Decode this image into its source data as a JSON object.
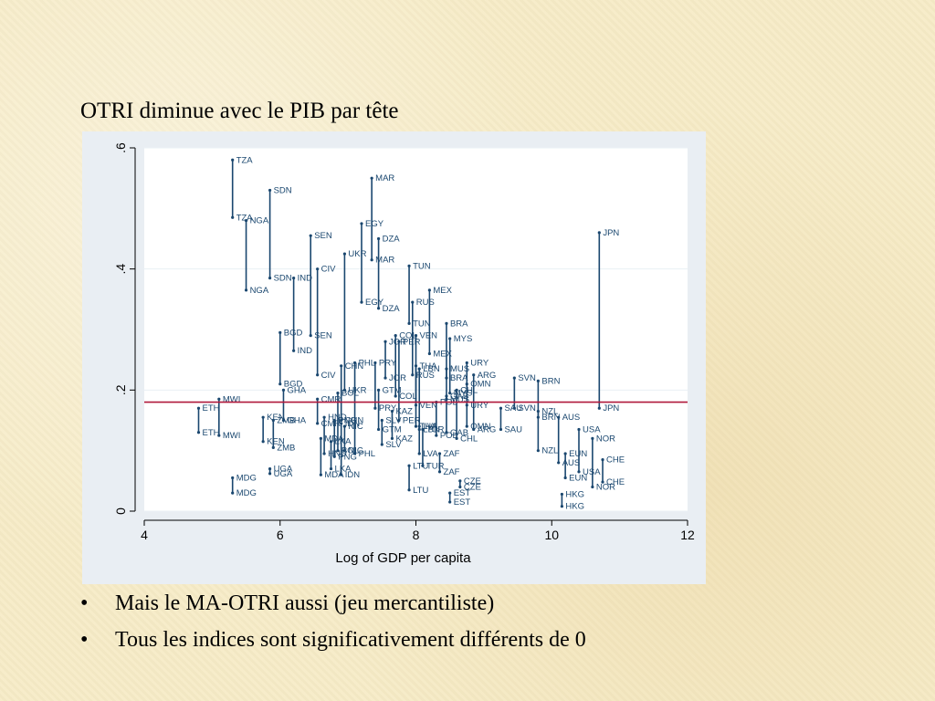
{
  "slide": {
    "title": "OTRI diminue avec le PIB par tête",
    "bullets": [
      {
        "marker": "•",
        "text": "Mais le MA-OTRI aussi (jeu mercantiliste)"
      },
      {
        "marker": "•",
        "text": "Tous les indices sont significativement différents de 0"
      }
    ]
  },
  "colors": {
    "series": "#1a476f",
    "reference_line": "#b0183a",
    "plot_bg": "#ffffff",
    "outer_bg": "#e9eef3",
    "grid": "#eaf0f4"
  },
  "chart_data": {
    "type": "scatter",
    "title": "",
    "xlabel": "Log of GDP per capita",
    "ylabel": "",
    "xlim": [
      4,
      12
    ],
    "ylim": [
      0,
      0.6
    ],
    "xticks": [
      4,
      6,
      8,
      10,
      12
    ],
    "xtick_labels": [
      "4",
      "6",
      "8",
      "10",
      "12"
    ],
    "yticks": [
      0,
      0.2,
      0.4,
      0.6
    ],
    "ytick_labels": [
      "0",
      ".2",
      ".4",
      ".6"
    ],
    "grid": true,
    "reference_line_y": 0.18,
    "pairs": [
      {
        "code": "TZA",
        "x": 5.3,
        "y1": 0.58,
        "y2": 0.485
      },
      {
        "code": "SDN",
        "x": 5.85,
        "y1": 0.53,
        "y2": 0.385
      },
      {
        "code": "NGA",
        "x": 5.5,
        "y1": 0.48,
        "y2": 0.365
      },
      {
        "code": "MAR",
        "x": 7.35,
        "y1": 0.55,
        "y2": 0.415
      },
      {
        "code": "EGY",
        "x": 7.2,
        "y1": 0.475,
        "y2": 0.345
      },
      {
        "code": "DZA",
        "x": 7.45,
        "y1": 0.45,
        "y2": 0.335
      },
      {
        "code": "SEN",
        "x": 6.45,
        "y1": 0.455,
        "y2": 0.29
      },
      {
        "code": "UKR",
        "x": 6.95,
        "y1": 0.425,
        "y2": 0.2
      },
      {
        "code": "CIV",
        "x": 6.55,
        "y1": 0.4,
        "y2": 0.225
      },
      {
        "code": "IND",
        "x": 6.2,
        "y1": 0.385,
        "y2": 0.265
      },
      {
        "code": "TUN",
        "x": 7.9,
        "y1": 0.405,
        "y2": 0.31
      },
      {
        "code": "MEX",
        "x": 8.2,
        "y1": 0.365,
        "y2": 0.26
      },
      {
        "code": "RUS",
        "x": 7.95,
        "y1": 0.345,
        "y2": 0.225
      },
      {
        "code": "JPN",
        "x": 10.7,
        "y1": 0.46,
        "y2": 0.17
      },
      {
        "code": "BGD",
        "x": 6.0,
        "y1": 0.295,
        "y2": 0.21
      },
      {
        "code": "BRA",
        "x": 8.45,
        "y1": 0.31,
        "y2": 0.22
      },
      {
        "code": "MYS",
        "x": 8.5,
        "y1": 0.285,
        "y2": 0.195
      },
      {
        "code": "URY",
        "x": 8.75,
        "y1": 0.245,
        "y2": 0.175
      },
      {
        "code": "ARG",
        "x": 8.85,
        "y1": 0.225,
        "y2": 0.135
      },
      {
        "code": "SVN",
        "x": 9.45,
        "y1": 0.22,
        "y2": 0.17
      },
      {
        "code": "BRN",
        "x": 9.8,
        "y1": 0.215,
        "y2": 0.155
      },
      {
        "code": "ETH",
        "x": 4.8,
        "y1": 0.17,
        "y2": 0.13
      },
      {
        "code": "MWI",
        "x": 5.1,
        "y1": 0.185,
        "y2": 0.125
      },
      {
        "code": "MDG",
        "x": 5.3,
        "y1": 0.055,
        "y2": 0.03
      },
      {
        "code": "UGA",
        "x": 5.85,
        "y1": 0.07,
        "y2": 0.062
      },
      {
        "code": "NZL",
        "x": 9.8,
        "y1": 0.165,
        "y2": 0.1
      },
      {
        "code": "AUS",
        "x": 10.1,
        "y1": 0.155,
        "y2": 0.08
      },
      {
        "code": "USA",
        "x": 10.4,
        "y1": 0.135,
        "y2": 0.065
      },
      {
        "code": "NOR",
        "x": 10.6,
        "y1": 0.12,
        "y2": 0.04
      },
      {
        "code": "EUN",
        "x": 10.2,
        "y1": 0.095,
        "y2": 0.055
      },
      {
        "code": "CHE",
        "x": 10.75,
        "y1": 0.085,
        "y2": 0.048
      },
      {
        "code": "HKG",
        "x": 10.15,
        "y1": 0.028,
        "y2": 0.008
      },
      {
        "code": "LTU",
        "x": 7.9,
        "y1": 0.075,
        "y2": 0.035
      },
      {
        "code": "EST",
        "x": 8.5,
        "y1": 0.03,
        "y2": 0.015
      },
      {
        "code": "CZE",
        "x": 8.65,
        "y1": 0.05,
        "y2": 0.04
      },
      {
        "code": "ZAF",
        "x": 8.35,
        "y1": 0.095,
        "y2": 0.065
      },
      {
        "code": "TUR",
        "x": 8.1,
        "y1": 0.135,
        "y2": 0.075
      },
      {
        "code": "LVA",
        "x": 8.05,
        "y1": 0.14,
        "y2": 0.095
      },
      {
        "code": "SLV",
        "x": 7.5,
        "y1": 0.15,
        "y2": 0.11
      },
      {
        "code": "KAZ",
        "x": 7.65,
        "y1": 0.165,
        "y2": 0.12
      },
      {
        "code": "ZMB",
        "x": 5.9,
        "y1": 0.15,
        "y2": 0.105
      },
      {
        "code": "KEN",
        "x": 5.75,
        "y1": 0.155,
        "y2": 0.115
      },
      {
        "code": "GHA",
        "x": 6.05,
        "y1": 0.2,
        "y2": 0.15
      },
      {
        "code": "CMR",
        "x": 6.55,
        "y1": 0.185,
        "y2": 0.145
      },
      {
        "code": "BOL",
        "x": 6.85,
        "y1": 0.195,
        "y2": 0.1
      },
      {
        "code": "CHN",
        "x": 6.9,
        "y1": 0.24,
        "y2": 0.15
      },
      {
        "code": "PHL",
        "x": 7.1,
        "y1": 0.245,
        "y2": 0.095
      },
      {
        "code": "PRY",
        "x": 7.4,
        "y1": 0.245,
        "y2": 0.17
      },
      {
        "code": "JOR",
        "x": 7.55,
        "y1": 0.28,
        "y2": 0.22
      },
      {
        "code": "PER",
        "x": 7.75,
        "y1": 0.28,
        "y2": 0.15
      },
      {
        "code": "COL",
        "x": 7.7,
        "y1": 0.29,
        "y2": 0.19
      },
      {
        "code": "VEN",
        "x": 8.0,
        "y1": 0.29,
        "y2": 0.175
      },
      {
        "code": "THA",
        "x": 8.0,
        "y1": 0.24,
        "y2": 0.14
      },
      {
        "code": "LBN",
        "x": 8.05,
        "y1": 0.235,
        "y2": 0.135
      },
      {
        "code": "MUS",
        "x": 8.45,
        "y1": 0.235,
        "y2": 0.185
      },
      {
        "code": "OMN",
        "x": 8.75,
        "y1": 0.21,
        "y2": 0.14
      },
      {
        "code": "CHL",
        "x": 8.6,
        "y1": 0.2,
        "y2": 0.12
      },
      {
        "code": "GAB",
        "x": 8.45,
        "y1": 0.19,
        "y2": 0.13
      },
      {
        "code": "POL",
        "x": 8.3,
        "y1": 0.18,
        "y2": 0.125
      },
      {
        "code": "SAU",
        "x": 9.25,
        "y1": 0.17,
        "y2": 0.135
      },
      {
        "code": "GTM",
        "x": 7.45,
        "y1": 0.2,
        "y2": 0.135
      },
      {
        "code": "HND",
        "x": 6.65,
        "y1": 0.155,
        "y2": 0.095
      },
      {
        "code": "MDA",
        "x": 6.6,
        "y1": 0.12,
        "y2": 0.06
      },
      {
        "code": "IDN",
        "x": 6.9,
        "y1": 0.145,
        "y2": 0.06
      },
      {
        "code": "NIC",
        "x": 6.95,
        "y1": 0.14,
        "y2": 0.1
      },
      {
        "code": "PNG",
        "x": 6.8,
        "y1": 0.15,
        "y2": 0.09
      },
      {
        "code": "LKA",
        "x": 6.75,
        "y1": 0.115,
        "y2": 0.07
      }
    ]
  }
}
